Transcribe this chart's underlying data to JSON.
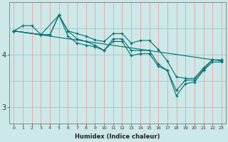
{
  "xlabel": "Humidex (Indice chaleur)",
  "ylabel": "",
  "bg_color": "#cce8e8",
  "line_color": "#007070",
  "grid_color_v": "#f0a0a0",
  "grid_color_h": "#99cccc",
  "x_ticks": [
    0,
    1,
    2,
    3,
    4,
    5,
    6,
    7,
    8,
    9,
    10,
    11,
    12,
    13,
    14,
    15,
    16,
    17,
    18,
    19,
    20,
    21,
    22,
    23
  ],
  "y_ticks": [
    3,
    4
  ],
  "ylim": [
    2.7,
    5.0
  ],
  "xlim": [
    -0.5,
    23.5
  ],
  "series": [
    {
      "x": [
        0,
        1,
        2,
        3,
        4,
        5,
        6,
        7,
        8,
        9,
        10,
        11,
        12,
        13,
        14,
        15,
        16,
        17,
        18,
        19,
        20,
        21,
        22,
        23
      ],
      "y": [
        4.45,
        4.55,
        4.55,
        4.38,
        4.38,
        4.75,
        4.45,
        4.4,
        4.35,
        4.28,
        4.25,
        4.4,
        4.4,
        4.22,
        4.27,
        4.27,
        4.1,
        3.88,
        3.58,
        3.55,
        3.55,
        3.75,
        3.9,
        3.9
      ]
    },
    {
      "x": [
        0,
        3,
        4,
        5,
        6,
        7,
        8,
        9,
        10,
        11,
        12,
        13,
        14,
        15,
        16,
        17,
        18,
        19,
        20,
        21,
        22,
        23
      ],
      "y": [
        4.45,
        4.38,
        4.38,
        4.75,
        4.45,
        4.3,
        4.25,
        4.18,
        4.08,
        4.3,
        4.3,
        4.08,
        4.08,
        4.08,
        3.82,
        3.7,
        3.32,
        3.52,
        3.52,
        3.72,
        3.9,
        3.9
      ]
    },
    {
      "x": [
        0,
        3,
        5,
        6,
        7,
        8,
        9,
        10,
        11,
        12,
        13,
        14,
        15,
        16,
        17,
        18,
        19,
        20,
        21,
        22,
        23
      ],
      "y": [
        4.45,
        4.38,
        4.75,
        4.35,
        4.22,
        4.18,
        4.15,
        4.08,
        4.25,
        4.25,
        3.98,
        4.02,
        4.02,
        3.78,
        3.7,
        3.22,
        3.45,
        3.48,
        3.7,
        3.86,
        3.86
      ]
    },
    {
      "x": [
        0,
        23
      ],
      "y": [
        4.45,
        3.88
      ]
    }
  ]
}
